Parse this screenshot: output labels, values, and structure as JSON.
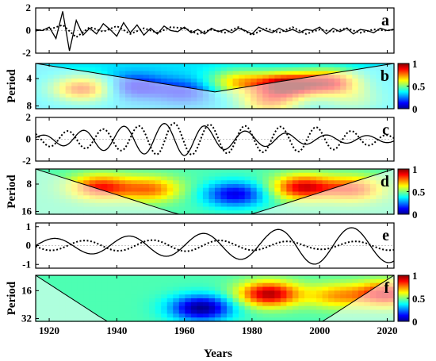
{
  "figure": {
    "xlabel": "Years",
    "x_ticks": [
      1920,
      1940,
      1960,
      1980,
      2000,
      2020
    ],
    "xlim": [
      1916,
      2022
    ]
  },
  "chart_data": [
    {
      "panel": "a",
      "type": "line",
      "ylim": [
        -2,
        2
      ],
      "y_ticks": [
        -2,
        0,
        2
      ],
      "series": [
        {
          "style": "solid",
          "x": [
            1916,
            1918,
            1920,
            1922,
            1924,
            1926,
            1928,
            1930,
            1932,
            1934,
            1936,
            1938,
            1940,
            1942,
            1944,
            1946,
            1948,
            1950,
            1952,
            1954,
            1956,
            1958,
            1960,
            1962,
            1964,
            1966,
            1968,
            1970,
            1972,
            1974,
            1976,
            1978,
            1980,
            1982,
            1984,
            1986,
            1988,
            1990,
            1992,
            1994,
            1996,
            1998,
            2000,
            2002,
            2004,
            2006,
            2008,
            2010,
            2012,
            2014,
            2016,
            2018,
            2020,
            2022
          ],
          "y": [
            0.1,
            0.0,
            0.3,
            -0.7,
            1.7,
            -1.8,
            0.9,
            -0.4,
            0.2,
            -0.3,
            0.6,
            0.1,
            -0.5,
            0.7,
            -0.2,
            0.5,
            -0.4,
            0.2,
            -0.3,
            0.4,
            0.0,
            -0.1,
            0.3,
            -0.2,
            0.1,
            -0.3,
            0.2,
            -0.1,
            0.1,
            -0.2,
            0.2,
            0.0,
            -0.3,
            0.3,
            0.0,
            -0.2,
            0.2,
            -0.1,
            0.1,
            -0.2,
            0.1,
            0.0,
            0.3,
            -0.3,
            0.2,
            -0.1,
            0.2,
            -0.3,
            0.1,
            0.0,
            -0.2,
            0.2,
            0.0,
            0.1
          ]
        },
        {
          "style": "dotted",
          "x": [
            1916,
            1920,
            1924,
            1928,
            1932,
            1936,
            1940,
            1944,
            1948,
            1952,
            1956,
            1960,
            1964,
            1968,
            1972,
            1976,
            1980,
            1984,
            1988,
            1992,
            1996,
            2000,
            2004,
            2008,
            2012,
            2016,
            2020,
            2022
          ],
          "y": [
            0.0,
            0.1,
            0.5,
            -0.6,
            0.3,
            -0.1,
            0.4,
            -0.3,
            0.2,
            -0.2,
            0.3,
            0.2,
            -0.3,
            0.1,
            -0.2,
            0.3,
            -0.4,
            0.2,
            -0.2,
            0.3,
            -0.3,
            0.1,
            -0.1,
            0.2,
            -0.2,
            0.1,
            0.0,
            0.1
          ]
        }
      ]
    },
    {
      "panel": "b",
      "type": "heatmap",
      "ylabel": "Period",
      "y_ticks": [
        4,
        8
      ],
      "colorbar_ticks": [
        0,
        0.5,
        1
      ],
      "colorscale": [
        "#00008f",
        "#0000ff",
        "#0080ff",
        "#00ffff",
        "#80ff80",
        "#ffff00",
        "#ff8000",
        "#ff0000",
        "#800000"
      ],
      "blobs": [
        {
          "x": 1930,
          "p": 5.5,
          "v": 0.8
        },
        {
          "x": 1945,
          "p": 5.2,
          "v": 0.1
        },
        {
          "x": 1960,
          "p": 6.0,
          "v": 0.15
        },
        {
          "x": 1976,
          "p": 4.5,
          "v": 0.65
        },
        {
          "x": 1990,
          "p": 5.0,
          "v": 0.95
        },
        {
          "x": 2003,
          "p": 4.6,
          "v": 0.85
        },
        {
          "x": 1985,
          "p": 7.5,
          "v": 0.7
        },
        {
          "x": 2010,
          "p": 7.0,
          "v": 0.5
        }
      ],
      "base": 0.35,
      "coi_scale": 0.45
    },
    {
      "panel": "c",
      "type": "line",
      "ylim": [
        -2,
        2
      ],
      "y_ticks": [
        -2,
        0,
        2
      ],
      "series": [
        {
          "style": "solid",
          "amplitude": 1.0,
          "period_years": 12.0,
          "phase": 0.5,
          "envelope": [
            [
              1916,
              0.3
            ],
            [
              1935,
              1.0
            ],
            [
              1950,
              1.4
            ],
            [
              1960,
              1.5
            ],
            [
              1975,
              0.8
            ],
            [
              2000,
              0.4
            ],
            [
              2022,
              0.3
            ]
          ]
        },
        {
          "style": "dotted",
          "amplitude": 1.0,
          "period_years": 10.5,
          "phase": 2.2,
          "envelope": [
            [
              1916,
              0.6
            ],
            [
              1940,
              1.0
            ],
            [
              1955,
              1.5
            ],
            [
              1980,
              1.2
            ],
            [
              2000,
              1.1
            ],
            [
              2022,
              0.3
            ]
          ]
        }
      ]
    },
    {
      "panel": "d",
      "type": "heatmap",
      "ylabel": "Period",
      "y_ticks": [
        8,
        16
      ],
      "colorbar_ticks": [
        0,
        0.5,
        1
      ],
      "colorscale": [
        "#00008f",
        "#0000ff",
        "#0080ff",
        "#00ffff",
        "#80ff80",
        "#ffff00",
        "#ff8000",
        "#ff0000",
        "#800000"
      ],
      "blobs": [
        {
          "x": 1935,
          "p": 9.0,
          "v": 0.85
        },
        {
          "x": 1950,
          "p": 9.5,
          "v": 0.75
        },
        {
          "x": 1975,
          "p": 11.0,
          "v": 0.1
        },
        {
          "x": 1995,
          "p": 9.0,
          "v": 0.9
        },
        {
          "x": 2010,
          "p": 9.5,
          "v": 0.8
        }
      ],
      "base": 0.45,
      "coi_scale": 0.9
    },
    {
      "panel": "e",
      "type": "line",
      "ylim": [
        -1.2,
        1.2
      ],
      "y_ticks": [
        -1,
        0,
        1
      ],
      "series": [
        {
          "style": "solid",
          "amplitude": 1.0,
          "period_years": 22.0,
          "phase": 0.0,
          "envelope": [
            [
              1916,
              0.35
            ],
            [
              1960,
              0.6
            ],
            [
              1985,
              0.8
            ],
            [
              1995,
              1.0
            ],
            [
              2022,
              0.9
            ]
          ]
        },
        {
          "style": "dotted",
          "amplitude": 1.0,
          "period_years": 20.0,
          "phase": 3.3,
          "envelope": [
            [
              1916,
              0.25
            ],
            [
              1960,
              0.3
            ],
            [
              2000,
              0.2
            ],
            [
              2022,
              0.25
            ]
          ]
        }
      ]
    },
    {
      "panel": "f",
      "type": "heatmap",
      "ylabel": "Period",
      "y_ticks": [
        16,
        32
      ],
      "colorbar_ticks": [
        0,
        0.5,
        1
      ],
      "colorscale": [
        "#00008f",
        "#0000ff",
        "#0080ff",
        "#00ffff",
        "#80ff80",
        "#ffff00",
        "#ff8000",
        "#ff0000",
        "#800000"
      ],
      "blobs": [
        {
          "x": 1965,
          "p": 26.0,
          "v": 0.0
        },
        {
          "x": 1985,
          "p": 18.0,
          "v": 0.95
        },
        {
          "x": 2005,
          "p": 19.0,
          "v": 0.7
        },
        {
          "x": 2020,
          "p": 18.0,
          "v": 0.9
        }
      ],
      "base": 0.45,
      "coi_scale": 1.8
    }
  ]
}
